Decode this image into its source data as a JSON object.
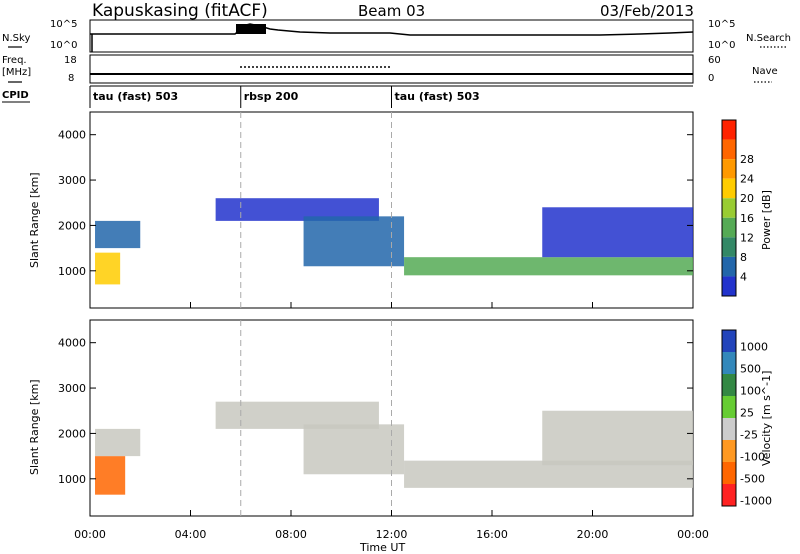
{
  "header": {
    "station": "Kapuskasing (fitACF)",
    "beam": "Beam 03",
    "date": "03/Feb/2013"
  },
  "noise_panel": {
    "left_label": "N.Sky",
    "right_label": "N.Search",
    "left_ticks": [
      "10^5",
      "10^0"
    ],
    "right_ticks": [
      "10^5",
      "10^0"
    ]
  },
  "freq_panel": {
    "left_label": "Freq.",
    "left_unit": "[MHz]",
    "left_ticks": [
      "18",
      "8"
    ],
    "right_label": "Nave",
    "right_ticks": [
      "60",
      "0"
    ]
  },
  "cpid": {
    "label": "CPID",
    "segments": [
      {
        "name": "tau (fast) 503",
        "start": 0,
        "end": 6
      },
      {
        "name": "rbsp 200",
        "start": 6,
        "end": 12
      },
      {
        "name": "tau (fast) 503",
        "start": 12,
        "end": 24
      }
    ]
  },
  "colors": {
    "power_scale": [
      "#2233cc",
      "#2266aa",
      "#338866",
      "#55aa55",
      "#99cc33",
      "#ffcc00",
      "#ff9900",
      "#ff6600",
      "#ff2200"
    ],
    "velocity_scale": [
      "#2244bb",
      "#3388bb",
      "#338844",
      "#66cc33",
      "#cccccc",
      "#ff9922",
      "#ff6600",
      "#ff2222"
    ],
    "ground_scatter": "#c8c8c0"
  },
  "chart_data": [
    {
      "type": "heatmap",
      "title": "Power",
      "ylabel": "Slant Range [km]",
      "xlabel": "Time UT",
      "xlim": [
        0,
        24
      ],
      "ylim": [
        180,
        4500
      ],
      "x_ticks": [
        "00:00",
        "04:00",
        "08:00",
        "12:00",
        "16:00",
        "20:00",
        "00:00"
      ],
      "y_ticks": [
        1000,
        2000,
        3000,
        4000
      ],
      "colorbar": {
        "label": "Power [dB]",
        "ticks": [
          4,
          8,
          12,
          16,
          20,
          24,
          28
        ]
      },
      "regions": [
        {
          "t0": 0.2,
          "t1": 1.2,
          "r0": 700,
          "r1": 1400,
          "power": 24
        },
        {
          "t0": 0.2,
          "t1": 2.0,
          "r0": 1500,
          "r1": 2100,
          "power": 10
        },
        {
          "t0": 5.0,
          "t1": 11.5,
          "r0": 2100,
          "r1": 2600,
          "power": 6
        },
        {
          "t0": 8.5,
          "t1": 12.5,
          "r0": 1100,
          "r1": 2200,
          "power": 8
        },
        {
          "t0": 12.5,
          "t1": 24.0,
          "r0": 900,
          "r1": 1300,
          "power": 18
        },
        {
          "t0": 18.0,
          "t1": 24.0,
          "r0": 1300,
          "r1": 2400,
          "power": 6
        }
      ],
      "dashed_times": [
        6,
        12
      ]
    },
    {
      "type": "heatmap",
      "title": "Velocity",
      "ylabel": "Slant Range [km]",
      "xlabel": "Time UT",
      "xlim": [
        0,
        24
      ],
      "ylim": [
        180,
        4500
      ],
      "x_ticks": [
        "00:00",
        "04:00",
        "08:00",
        "12:00",
        "16:00",
        "20:00",
        "00:00"
      ],
      "y_ticks": [
        1000,
        2000,
        3000,
        4000
      ],
      "colorbar": {
        "label": "Velocity [m s^-1]",
        "ticks": [
          1000,
          500,
          100,
          25,
          -25,
          -100,
          -500,
          -1000
        ]
      },
      "regions": [
        {
          "t0": 0.2,
          "t1": 1.4,
          "r0": 650,
          "r1": 1500,
          "velocity": -300
        },
        {
          "t0": 0.2,
          "t1": 2.0,
          "r0": 1500,
          "r1": 2100,
          "velocity": 0
        },
        {
          "t0": 5.0,
          "t1": 11.5,
          "r0": 2100,
          "r1": 2700,
          "velocity": 0
        },
        {
          "t0": 8.5,
          "t1": 12.5,
          "r0": 1100,
          "r1": 2200,
          "velocity": 0
        },
        {
          "t0": 12.5,
          "t1": 24.0,
          "r0": 800,
          "r1": 1400,
          "velocity": 0
        },
        {
          "t0": 18.0,
          "t1": 24.0,
          "r0": 1300,
          "r1": 2500,
          "velocity": 0
        }
      ],
      "dashed_times": [
        6,
        12
      ]
    }
  ]
}
